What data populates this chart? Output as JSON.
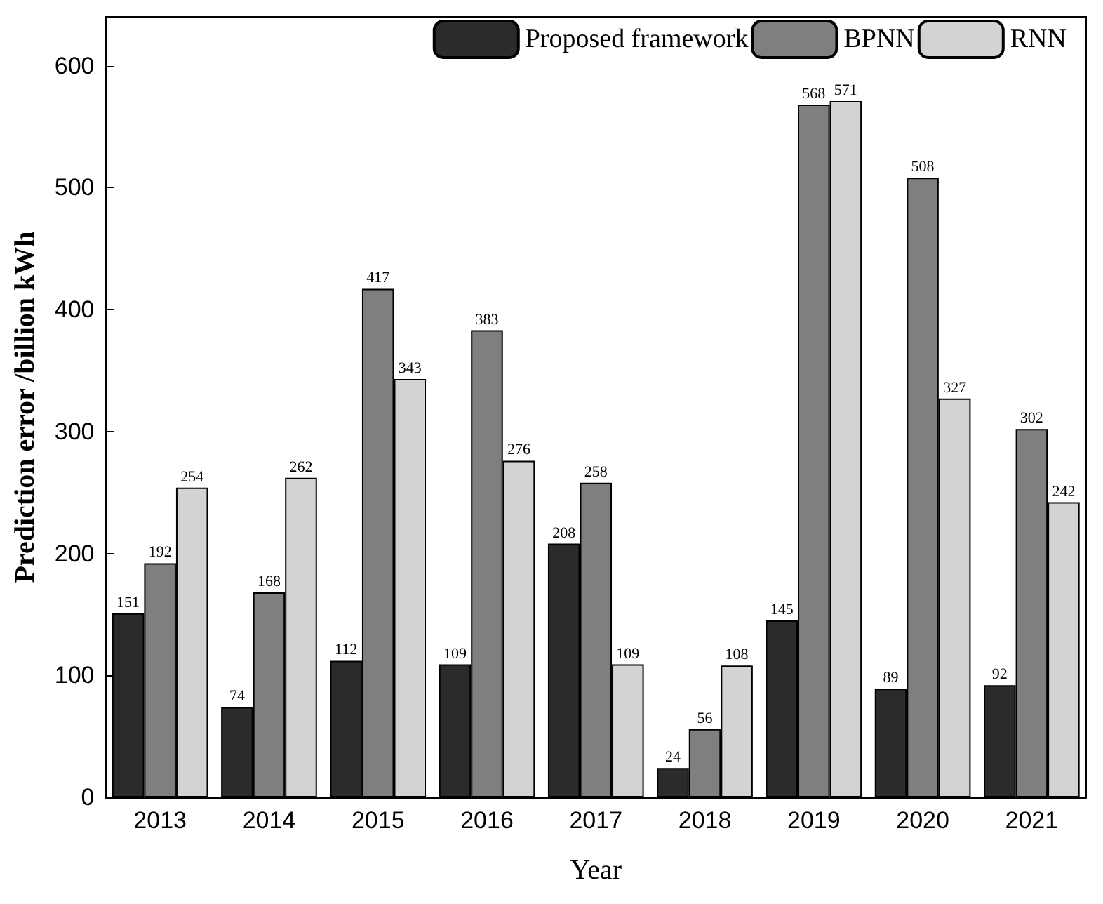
{
  "chart_data": {
    "type": "bar",
    "xlabel": "Year",
    "ylabel": "Prediction error /billion kWh",
    "categories": [
      "2013",
      "2014",
      "2015",
      "2016",
      "2017",
      "2018",
      "2019",
      "2020",
      "2021"
    ],
    "series": [
      {
        "name": "Proposed framework",
        "color": "#2b2b2b",
        "values": [
          151,
          74,
          112,
          109,
          208,
          24,
          145,
          89,
          92
        ]
      },
      {
        "name": "BPNN",
        "color": "#7f7f7f",
        "values": [
          192,
          168,
          417,
          383,
          258,
          56,
          568,
          508,
          302
        ]
      },
      {
        "name": "RNN",
        "color": "#d3d3d3",
        "values": [
          254,
          262,
          343,
          276,
          109,
          108,
          571,
          327,
          242
        ]
      }
    ],
    "ylim": [
      0,
      640
    ],
    "yticks": [
      0,
      100,
      200,
      300,
      400,
      500,
      600
    ],
    "grid": false,
    "legend": "top right",
    "data_labels": true
  }
}
